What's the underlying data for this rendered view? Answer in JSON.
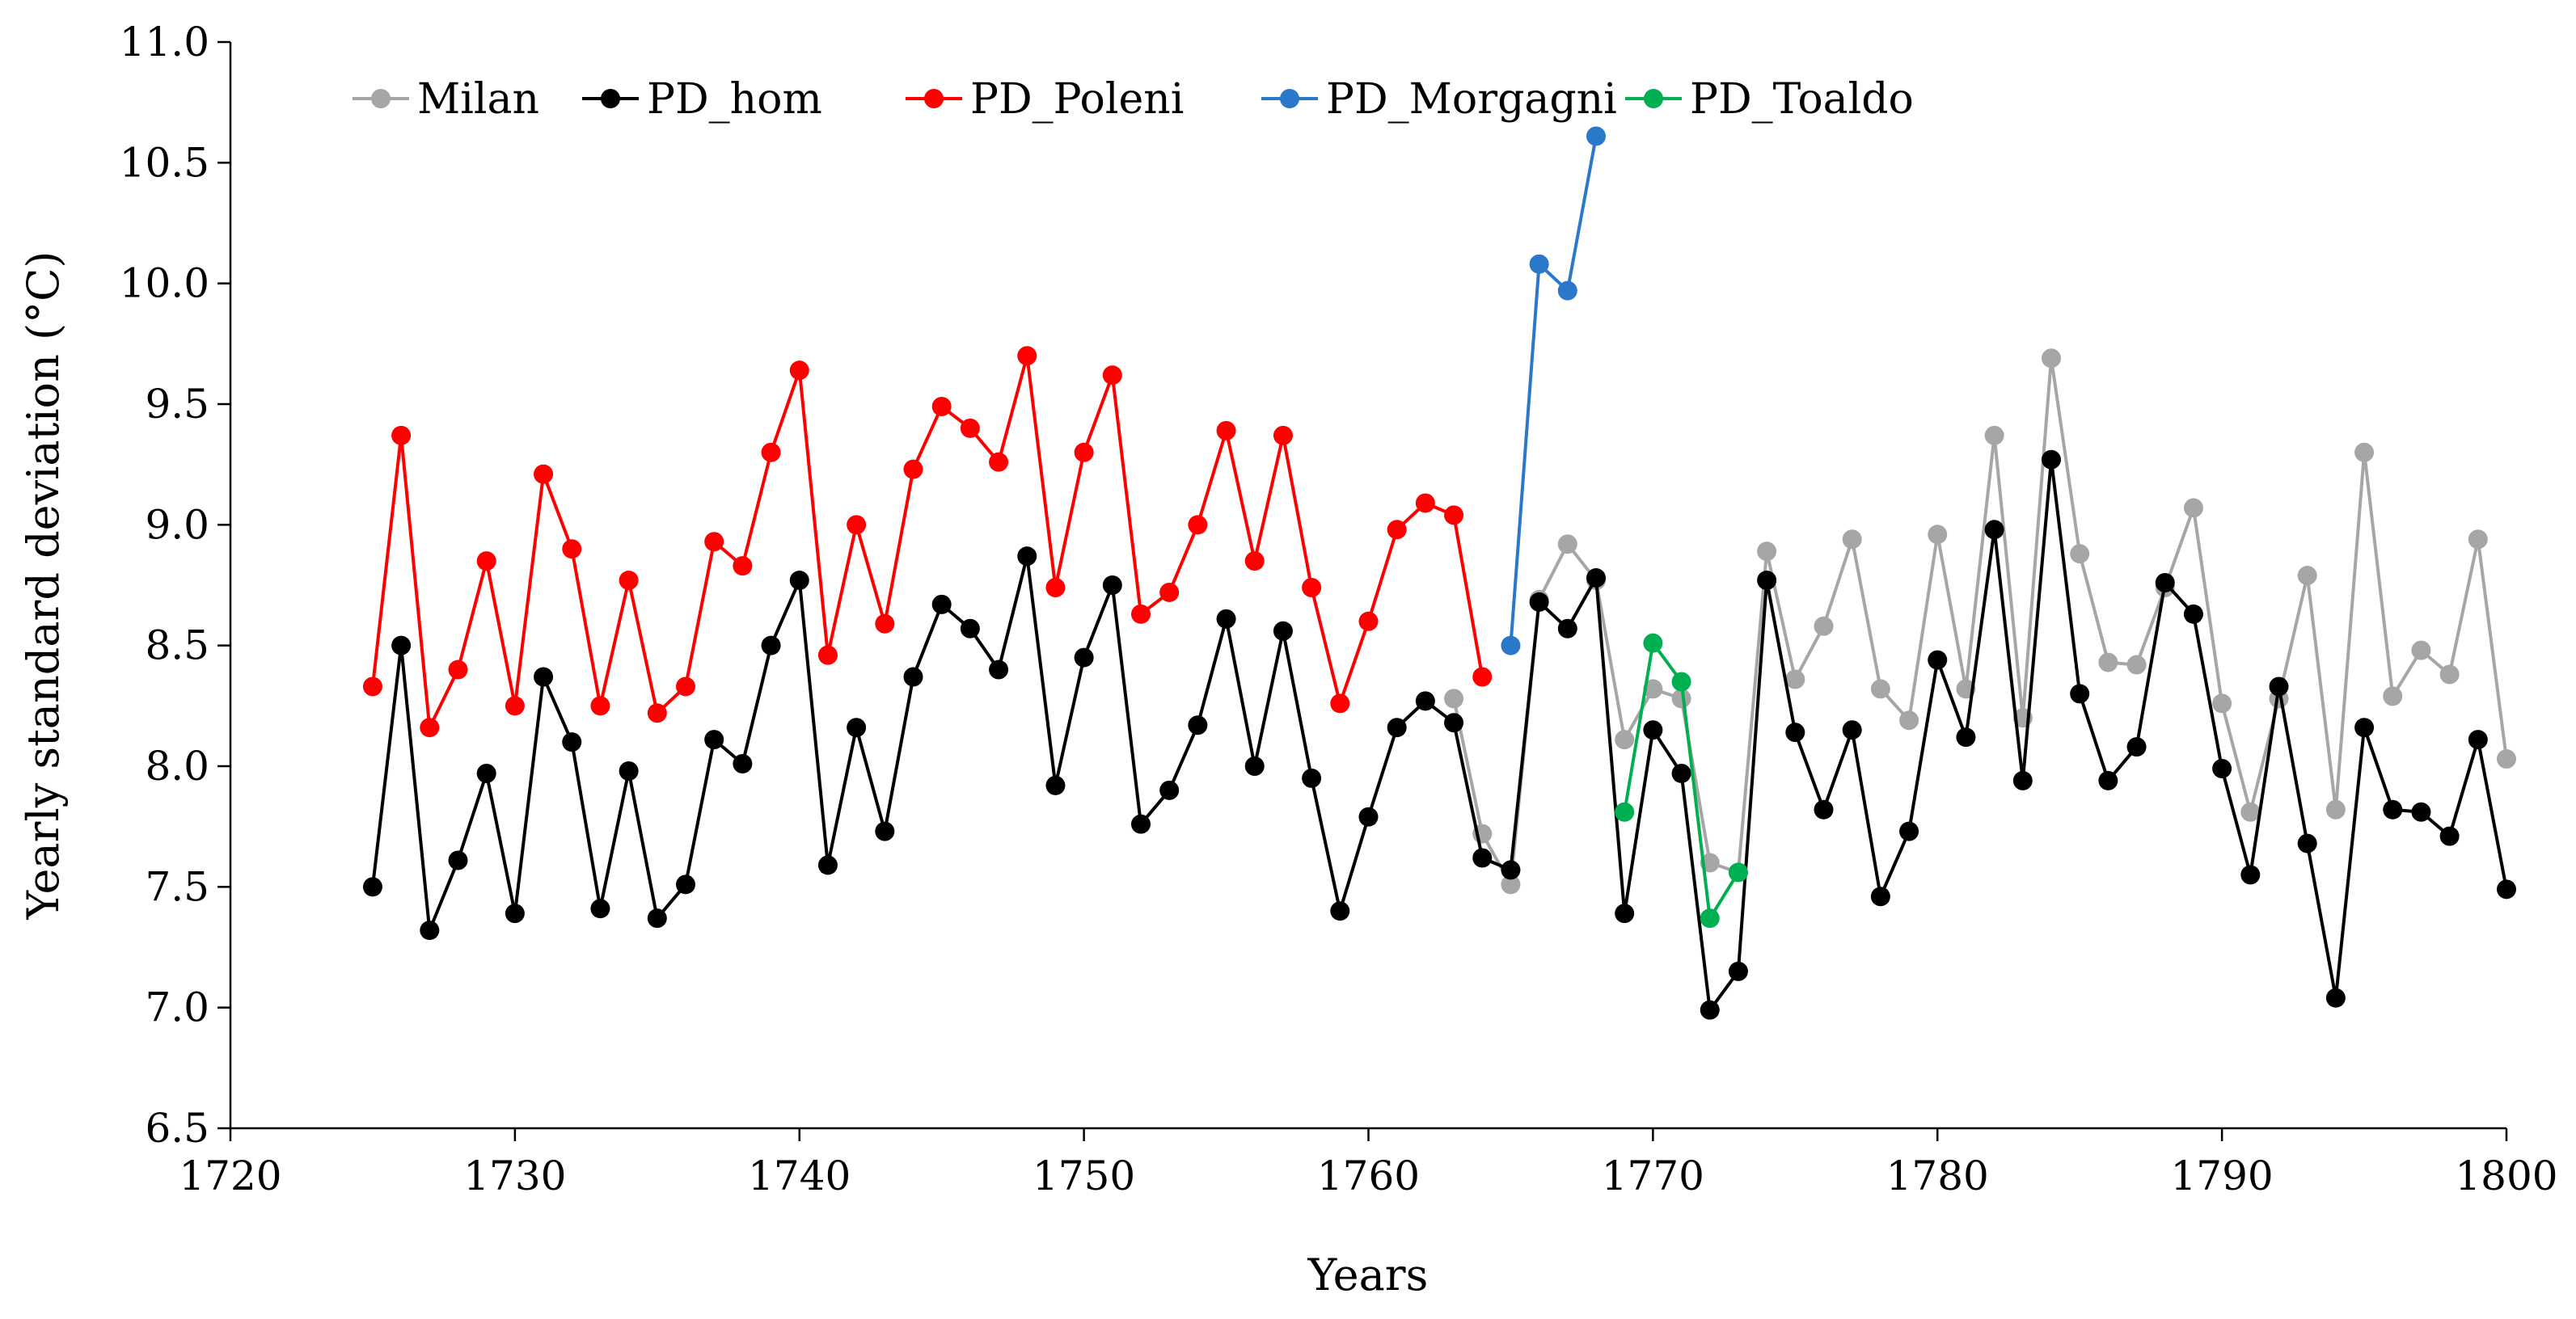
{
  "chart_data": {
    "type": "line",
    "title": "",
    "xlabel": "Years",
    "ylabel": "Yearly standard deviation (°C)",
    "xlim": [
      1720,
      1800
    ],
    "ylim": [
      6.5,
      11.0
    ],
    "xticks": [
      1720,
      1730,
      1740,
      1750,
      1760,
      1770,
      1780,
      1790,
      1800
    ],
    "yticks": [
      6.5,
      7.0,
      7.5,
      8.0,
      8.5,
      9.0,
      9.5,
      10.0,
      10.5,
      11.0
    ],
    "ytick_labels": [
      "6.5",
      "7.0",
      "7.5",
      "8.0",
      "8.5",
      "9.0",
      "9.5",
      "10.0",
      "10.5",
      "11.0"
    ],
    "xtick_labels": [
      "1720",
      "1730",
      "1740",
      "1750",
      "1760",
      "1770",
      "1780",
      "1790",
      "1800"
    ],
    "grid": false,
    "legend_position": "top",
    "series": [
      {
        "name": "Milan",
        "color": "#a6a6a6",
        "x": [
          1763,
          1764,
          1765,
          1766,
          1767,
          1768,
          1769,
          1770,
          1771,
          1772,
          1773,
          1774,
          1775,
          1776,
          1777,
          1778,
          1779,
          1780,
          1781,
          1782,
          1783,
          1784,
          1785,
          1786,
          1787,
          1788,
          1789,
          1790,
          1791,
          1792,
          1793,
          1794,
          1795,
          1796,
          1797,
          1798,
          1799,
          1800
        ],
        "values": [
          8.28,
          7.72,
          7.51,
          8.69,
          8.92,
          8.77,
          8.11,
          8.32,
          8.28,
          7.6,
          7.56,
          8.89,
          8.36,
          8.58,
          8.94,
          8.32,
          8.19,
          8.96,
          8.32,
          9.37,
          8.2,
          9.69,
          8.88,
          8.43,
          8.42,
          8.74,
          9.07,
          8.26,
          7.81,
          8.28,
          8.79,
          7.82,
          9.3,
          8.29,
          8.48,
          8.38,
          8.94,
          8.03
        ]
      },
      {
        "name": "PD_hom",
        "color": "#000000",
        "x": [
          1725,
          1726,
          1727,
          1728,
          1729,
          1730,
          1731,
          1732,
          1733,
          1734,
          1735,
          1736,
          1737,
          1738,
          1739,
          1740,
          1741,
          1742,
          1743,
          1744,
          1745,
          1746,
          1747,
          1748,
          1749,
          1750,
          1751,
          1752,
          1753,
          1754,
          1755,
          1756,
          1757,
          1758,
          1759,
          1760,
          1761,
          1762,
          1763,
          1764,
          1765,
          1766,
          1767,
          1768,
          1769,
          1770,
          1771,
          1772,
          1773,
          1774,
          1775,
          1776,
          1777,
          1778,
          1779,
          1780,
          1781,
          1782,
          1783,
          1784,
          1785,
          1786,
          1787,
          1788,
          1789,
          1790,
          1791,
          1792,
          1793,
          1794,
          1795,
          1796,
          1797,
          1798,
          1799,
          1800
        ],
        "values": [
          7.5,
          8.5,
          7.32,
          7.61,
          7.97,
          7.39,
          8.37,
          8.1,
          7.41,
          7.98,
          7.37,
          7.51,
          8.11,
          8.01,
          8.5,
          8.77,
          7.59,
          8.16,
          7.73,
          8.37,
          8.67,
          8.57,
          8.4,
          8.87,
          7.92,
          8.45,
          8.75,
          7.76,
          7.9,
          8.17,
          8.61,
          8.0,
          8.56,
          7.95,
          7.4,
          7.79,
          8.16,
          8.27,
          8.18,
          7.62,
          7.57,
          8.68,
          8.57,
          8.78,
          7.39,
          8.15,
          7.97,
          6.99,
          7.15,
          8.77,
          8.14,
          7.82,
          8.15,
          7.46,
          7.73,
          8.44,
          8.12,
          8.98,
          7.94,
          9.27,
          8.3,
          7.94,
          8.08,
          8.76,
          8.63,
          7.99,
          7.55,
          8.33,
          7.68,
          7.04,
          8.16,
          7.82,
          7.81,
          7.71,
          8.11,
          7.49
        ]
      },
      {
        "name": "PD_Poleni",
        "color": "#ff0000",
        "x": [
          1725,
          1726,
          1727,
          1728,
          1729,
          1730,
          1731,
          1732,
          1733,
          1734,
          1735,
          1736,
          1737,
          1738,
          1739,
          1740,
          1741,
          1742,
          1743,
          1744,
          1745,
          1746,
          1747,
          1748,
          1749,
          1750,
          1751,
          1752,
          1753,
          1754,
          1755,
          1756,
          1757,
          1758,
          1759,
          1760,
          1761,
          1762,
          1763,
          1764
        ],
        "values": [
          8.33,
          9.37,
          8.16,
          8.4,
          8.85,
          8.25,
          9.21,
          8.9,
          8.25,
          8.77,
          8.22,
          8.33,
          8.93,
          8.83,
          9.3,
          9.64,
          8.46,
          9.0,
          8.59,
          9.23,
          9.49,
          9.4,
          9.26,
          9.7,
          8.74,
          9.3,
          9.62,
          8.63,
          8.72,
          9.0,
          9.39,
          8.85,
          9.37,
          8.74,
          8.26,
          8.6,
          8.98,
          9.09,
          9.04,
          8.37
        ]
      },
      {
        "name": "PD_Morgagni",
        "color": "#2a78c9",
        "x": [
          1765,
          1766,
          1767,
          1768
        ],
        "values": [
          8.5,
          10.08,
          9.97,
          10.61
        ]
      },
      {
        "name": "PD_Toaldo",
        "color": "#00b050",
        "x": [
          1769,
          1770,
          1771,
          1772,
          1773
        ],
        "values": [
          7.81,
          8.51,
          8.35,
          7.37,
          7.56
        ]
      }
    ]
  }
}
